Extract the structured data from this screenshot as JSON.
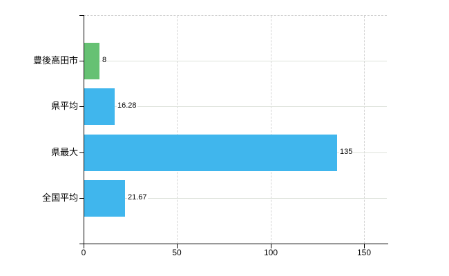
{
  "chart_data": {
    "type": "bar",
    "orientation": "horizontal",
    "title": "",
    "categories": [
      "豊後高田市",
      "県平均",
      "県最大",
      "全国平均"
    ],
    "values": [
      8,
      16.28,
      135,
      21.67
    ],
    "value_labels": [
      "8",
      "16.28",
      "135",
      "21.67"
    ],
    "series": [
      {
        "name": "values",
        "values": [
          8,
          16.28,
          135,
          21.67
        ]
      }
    ],
    "bar_colors": [
      "#66c173",
      "#40b6ed",
      "#40b6ed",
      "#40b6ed"
    ],
    "x_tick_labels": [
      "0",
      "50",
      "100",
      "150"
    ],
    "x_tick_values": [
      0,
      50,
      100,
      150
    ],
    "xlim": [
      0,
      162
    ],
    "xlabel": "",
    "ylabel": "",
    "legend": null,
    "grid": {
      "vertical_gridlines": true,
      "category_lines": true,
      "top_border_dashed": true
    },
    "colors": {
      "highlight_bar": "#66c173",
      "default_bar": "#40b6ed",
      "axis": "#000000",
      "vertical_gridline": "#d4d4d4",
      "category_gridline": "#dde2da",
      "text": "#000000",
      "background": "#ffffff"
    }
  }
}
